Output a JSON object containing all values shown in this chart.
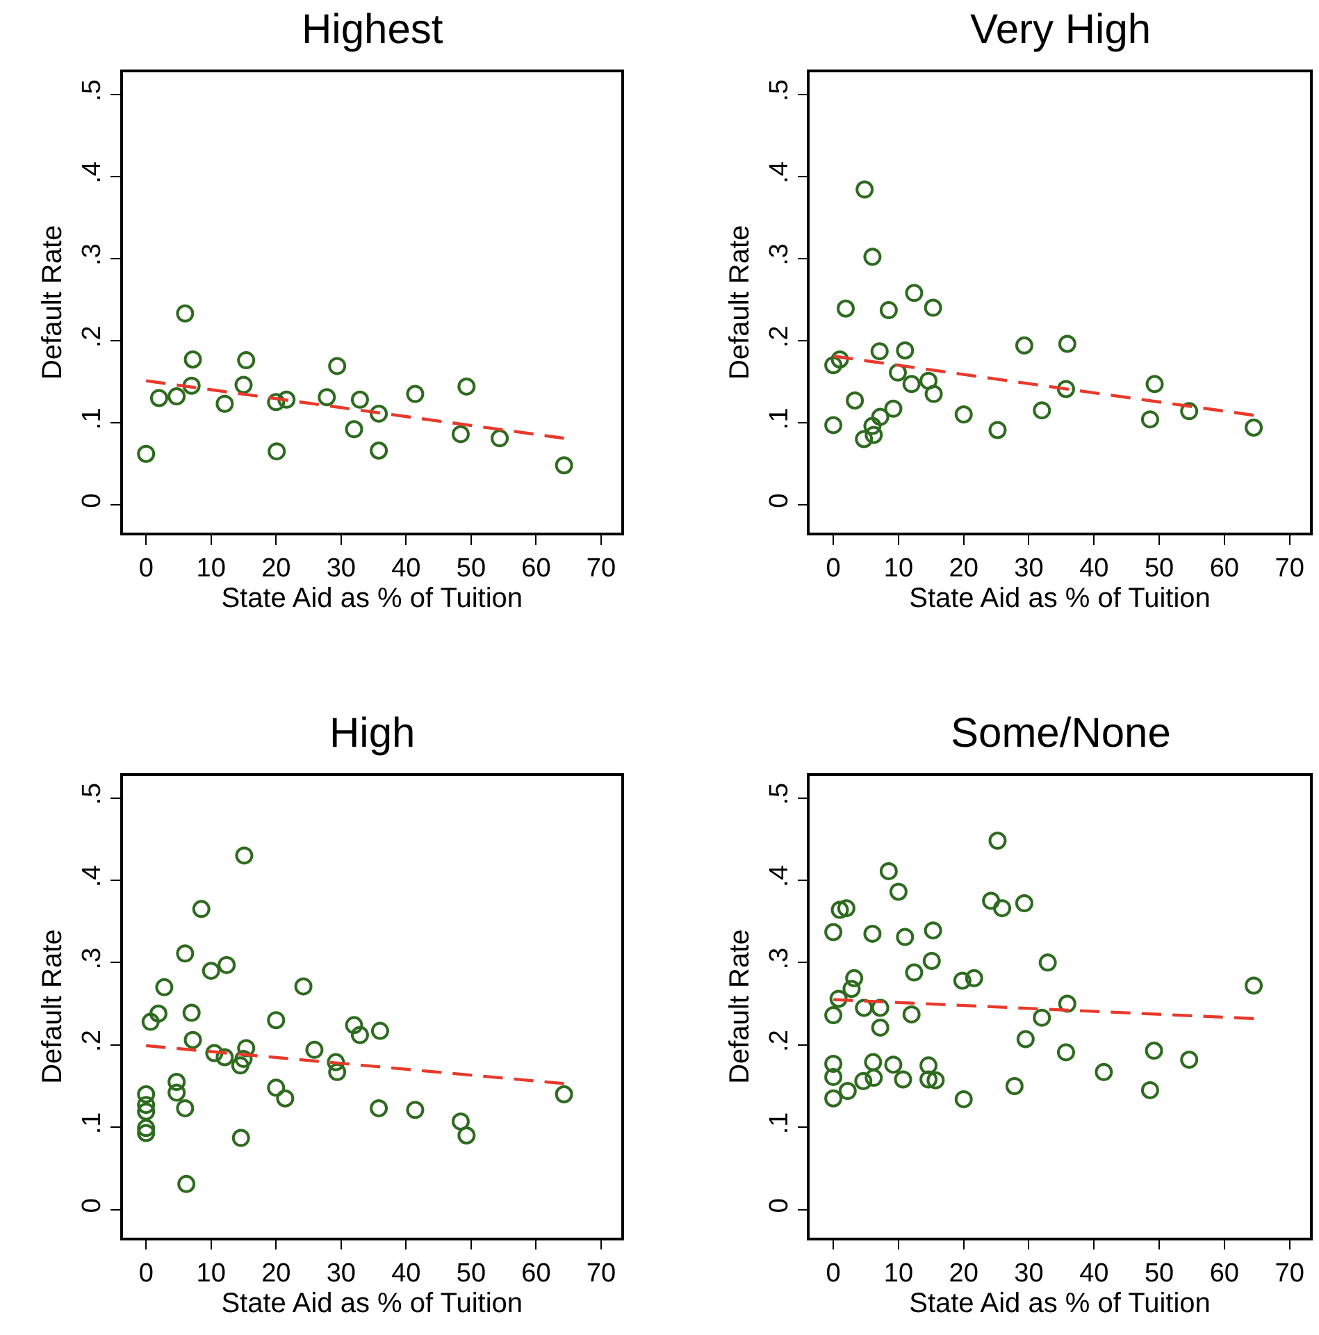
{
  "chart_data": [
    {
      "type": "scatter",
      "title": "Highest",
      "xlabel": "State Aid as % of Tuition",
      "ylabel": "Default Rate",
      "xlim": [
        -3.6,
        73.1
      ],
      "ylim": [
        -0.034,
        0.527
      ],
      "xticks": [
        0,
        10,
        20,
        30,
        40,
        50,
        60,
        70
      ],
      "yticks": [
        {
          "value": 0,
          "label": "0"
        },
        {
          "value": 0.1,
          "label": ".1"
        },
        {
          "value": 0.2,
          "label": ".2"
        },
        {
          "value": 0.3,
          "label": ".3"
        },
        {
          "value": 0.4,
          "label": ".4"
        },
        {
          "value": 0.5,
          "label": ".5"
        }
      ],
      "series": [
        {
          "marker": "circle",
          "color": "#2e6b1f",
          "x": [
            0,
            2.0,
            4.7,
            6.0,
            7.2,
            7.0,
            12.1,
            15.4,
            15.0,
            20.0,
            21.6,
            20.1,
            27.8,
            29.4,
            32.0,
            32.9,
            35.8,
            35.8,
            41.4,
            48.4,
            49.3,
            54.4,
            64.3
          ],
          "values": [
            0.062,
            0.13,
            0.132,
            0.233,
            0.177,
            0.145,
            0.123,
            0.176,
            0.146,
            0.125,
            0.128,
            0.065,
            0.131,
            0.169,
            0.092,
            0.128,
            0.111,
            0.066,
            0.135,
            0.086,
            0.144,
            0.081,
            0.048
          ]
        },
        {
          "type": "line",
          "color": "#e8392a",
          "line_style": "dashed",
          "x": [
            0,
            64.3
          ],
          "values": [
            0.151,
            0.081
          ]
        }
      ]
    },
    {
      "type": "scatter",
      "title": "Very High",
      "xlabel": "State Aid as % of Tuition",
      "ylabel": "Default Rate",
      "xlim": [
        -3.6,
        73.1
      ],
      "ylim": [
        -0.034,
        0.527
      ],
      "xticks": [
        0,
        10,
        20,
        30,
        40,
        50,
        60,
        70
      ],
      "yticks": [
        {
          "value": 0,
          "label": "0"
        },
        {
          "value": 0.1,
          "label": ".1"
        },
        {
          "value": 0.2,
          "label": ".2"
        },
        {
          "value": 0.3,
          "label": ".3"
        },
        {
          "value": 0.4,
          "label": ".4"
        },
        {
          "value": 0.5,
          "label": ".5"
        }
      ],
      "series": [
        {
          "marker": "circle",
          "color": "#2e6b1f",
          "x": [
            4.8,
            6.0,
            12.4,
            1.9,
            8.5,
            15.3,
            29.3,
            35.9,
            0,
            1.0,
            7.1,
            11.0,
            9.9,
            12.0,
            14.6,
            15.4,
            35.7,
            49.3,
            3.3,
            9.2,
            7.2,
            6.0,
            4.7,
            6.2,
            0,
            20.0,
            25.2,
            32.0,
            48.6,
            54.6,
            64.5
          ],
          "values": [
            0.384,
            0.302,
            0.258,
            0.239,
            0.237,
            0.24,
            0.194,
            0.196,
            0.17,
            0.177,
            0.187,
            0.188,
            0.161,
            0.147,
            0.151,
            0.135,
            0.141,
            0.147,
            0.127,
            0.117,
            0.107,
            0.096,
            0.08,
            0.085,
            0.097,
            0.11,
            0.091,
            0.115,
            0.104,
            0.114,
            0.094
          ]
        },
        {
          "type": "line",
          "color": "#e8392a",
          "line_style": "dashed",
          "x": [
            0,
            64.5
          ],
          "values": [
            0.181,
            0.109
          ]
        }
      ]
    },
    {
      "type": "scatter",
      "title": "High",
      "xlabel": "State Aid as % of Tuition",
      "ylabel": "Default Rate",
      "xlim": [
        -3.6,
        73.1
      ],
      "ylim": [
        -0.034,
        0.527
      ],
      "xticks": [
        0,
        10,
        20,
        30,
        40,
        50,
        60,
        70
      ],
      "yticks": [
        {
          "value": 0,
          "label": "0"
        },
        {
          "value": 0.1,
          "label": ".1"
        },
        {
          "value": 0.2,
          "label": ".2"
        },
        {
          "value": 0.3,
          "label": ".3"
        },
        {
          "value": 0.4,
          "label": ".4"
        },
        {
          "value": 0.5,
          "label": ".5"
        }
      ],
      "series": [
        {
          "marker": "circle",
          "color": "#2e6b1f",
          "x": [
            15.1,
            8.5,
            6.0,
            12.4,
            10.0,
            2.8,
            24.2,
            1.9,
            0.7,
            7.0,
            20.0,
            32.0,
            32.9,
            36.0,
            7.2,
            10.5,
            12.1,
            15.4,
            15.0,
            14.5,
            25.9,
            29.2,
            29.4,
            64.3,
            0,
            0,
            0,
            0,
            0,
            4.7,
            4.7,
            6.0,
            20.0,
            21.4,
            35.8,
            41.4,
            48.4,
            49.3,
            14.6,
            6.2
          ],
          "values": [
            0.43,
            0.365,
            0.311,
            0.297,
            0.29,
            0.27,
            0.271,
            0.238,
            0.228,
            0.239,
            0.23,
            0.224,
            0.212,
            0.217,
            0.206,
            0.19,
            0.185,
            0.196,
            0.183,
            0.175,
            0.194,
            0.179,
            0.167,
            0.14,
            0.14,
            0.127,
            0.119,
            0.099,
            0.093,
            0.155,
            0.142,
            0.123,
            0.148,
            0.135,
            0.123,
            0.121,
            0.107,
            0.09,
            0.087,
            0.031
          ]
        },
        {
          "type": "line",
          "color": "#e8392a",
          "line_style": "dashed",
          "x": [
            0,
            64.3
          ],
          "values": [
            0.199,
            0.153
          ]
        }
      ]
    },
    {
      "type": "scatter",
      "title": "Some/None",
      "xlabel": "State Aid as % of Tuition",
      "ylabel": "Default Rate",
      "xlim": [
        -3.6,
        73.1
      ],
      "ylim": [
        -0.034,
        0.527
      ],
      "xticks": [
        0,
        10,
        20,
        30,
        40,
        50,
        60,
        70
      ],
      "yticks": [
        {
          "value": 0,
          "label": "0"
        },
        {
          "value": 0.1,
          "label": ".1"
        },
        {
          "value": 0.2,
          "label": ".2"
        },
        {
          "value": 0.3,
          "label": ".3"
        },
        {
          "value": 0.4,
          "label": ".4"
        },
        {
          "value": 0.5,
          "label": ".5"
        }
      ],
      "series": [
        {
          "marker": "circle",
          "color": "#2e6b1f",
          "x": [
            25.2,
            8.5,
            10.0,
            1.0,
            2.0,
            24.2,
            25.9,
            29.3,
            0,
            6.0,
            11.0,
            15.3,
            15.1,
            32.9,
            12.4,
            3.2,
            2.8,
            19.8,
            21.6,
            64.5,
            0.8,
            0,
            4.7,
            7.2,
            7.2,
            12.0,
            35.9,
            32.0,
            29.5,
            35.7,
            49.2,
            54.6,
            0,
            0,
            0,
            2.2,
            4.6,
            6.1,
            6.2,
            9.2,
            10.7,
            14.6,
            14.6,
            15.7,
            20.0,
            27.8,
            41.5,
            48.6
          ],
          "values": [
            0.448,
            0.411,
            0.386,
            0.364,
            0.366,
            0.375,
            0.366,
            0.372,
            0.337,
            0.335,
            0.331,
            0.339,
            0.302,
            0.3,
            0.288,
            0.281,
            0.268,
            0.278,
            0.281,
            0.272,
            0.256,
            0.236,
            0.245,
            0.245,
            0.221,
            0.237,
            0.25,
            0.233,
            0.207,
            0.191,
            0.193,
            0.182,
            0.177,
            0.161,
            0.135,
            0.144,
            0.156,
            0.179,
            0.16,
            0.176,
            0.158,
            0.175,
            0.158,
            0.157,
            0.134,
            0.15,
            0.167,
            0.145
          ]
        },
        {
          "type": "line",
          "color": "#e8392a",
          "line_style": "dashed",
          "x": [
            0,
            64.5
          ],
          "values": [
            0.255,
            0.232
          ]
        }
      ]
    }
  ]
}
